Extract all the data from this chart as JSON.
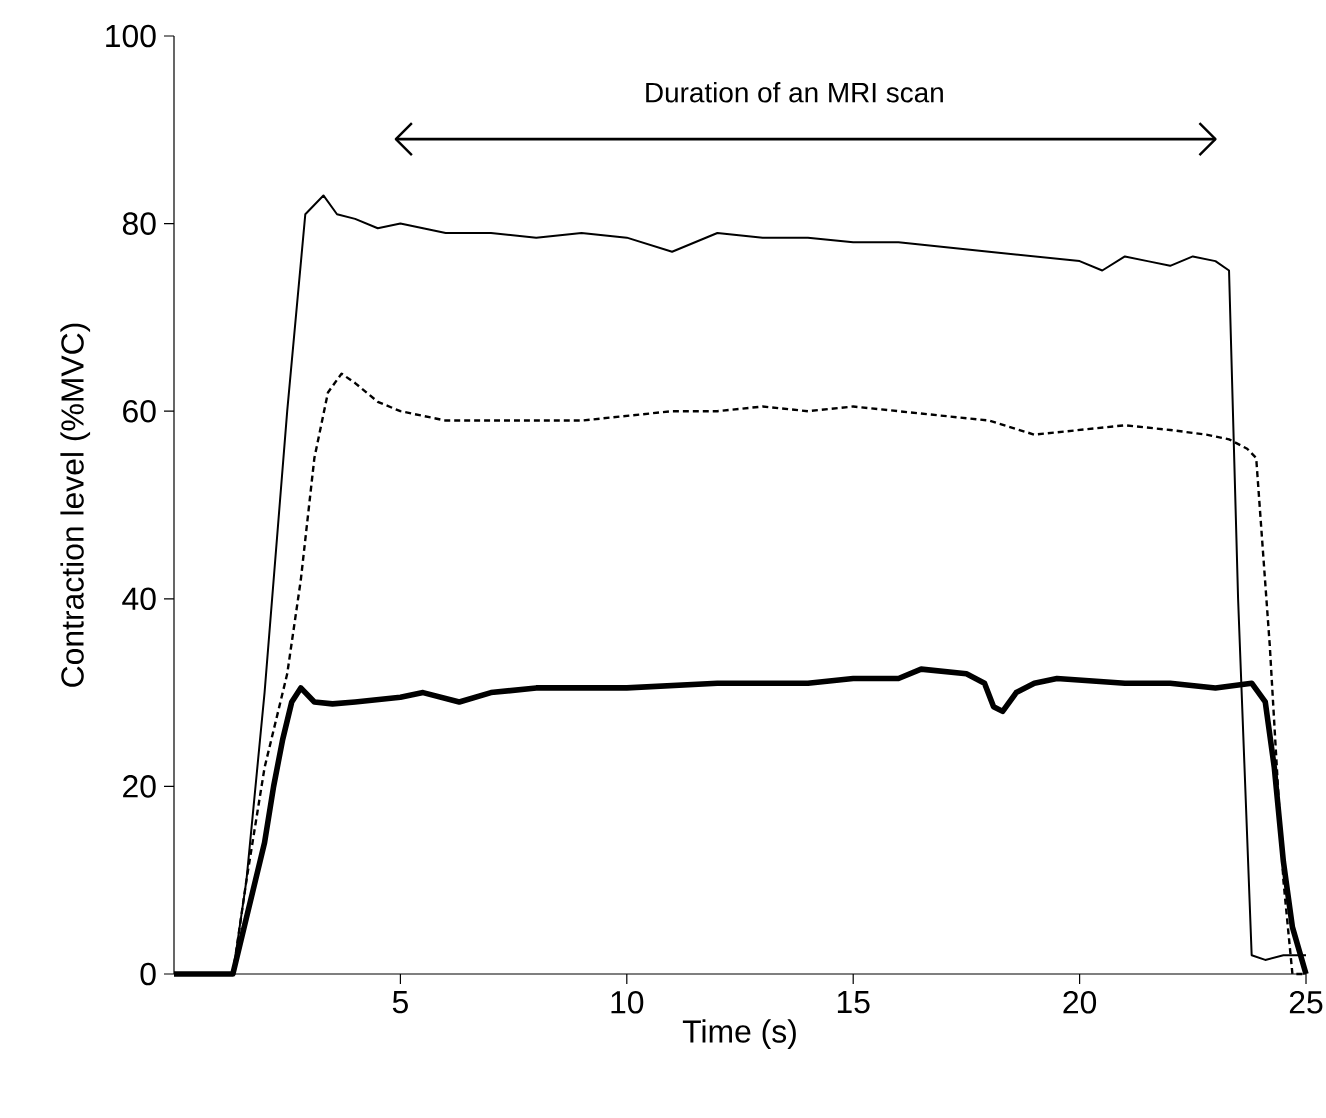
{
  "chart_data": {
    "type": "line",
    "xlabel": "Time (s)",
    "ylabel": "Contraction level (%MVC)",
    "xlim": [
      0,
      25
    ],
    "ylim": [
      0,
      100
    ],
    "xticks": [
      5,
      10,
      15,
      20,
      25
    ],
    "yticks": [
      0,
      20,
      40,
      60,
      80,
      100
    ],
    "grid": false,
    "marker": "none",
    "annotations": [
      "Duration of an MRI scan"
    ],
    "series": [
      {
        "color": "#000000",
        "line_style": "solid",
        "x": [
          0,
          1.3,
          1.6,
          2.0,
          2.5,
          2.9,
          3.3,
          3.6,
          4.0,
          4.5,
          5.0,
          6.0,
          7.0,
          8.0,
          9.0,
          10.0,
          11.0,
          11.5,
          12.0,
          13.0,
          14.0,
          15.0,
          16.0,
          17.0,
          18.0,
          19.0,
          20.0,
          20.5,
          21.0,
          21.5,
          22.0,
          22.5,
          23.0,
          23.3,
          23.5,
          23.8,
          24.1,
          24.5,
          25.0
        ],
        "values": [
          0,
          0,
          10,
          30,
          60,
          81,
          83,
          81,
          80.5,
          79.5,
          80,
          79,
          79,
          78.5,
          79,
          78.5,
          77,
          78,
          79,
          78.5,
          78.5,
          78,
          78,
          77.5,
          77,
          76.5,
          76,
          75,
          76.5,
          76,
          75.5,
          76.5,
          76,
          75,
          40,
          2,
          1.5,
          2,
          2
        ]
      },
      {
        "color": "#000000",
        "line_style": "dashed",
        "x": [
          0,
          1.3,
          1.6,
          2.0,
          2.5,
          2.8,
          3.1,
          3.4,
          3.7,
          4.0,
          4.5,
          5.0,
          5.5,
          6.0,
          7.0,
          8.0,
          9.0,
          10.0,
          11.0,
          12.0,
          13.0,
          14.0,
          15.0,
          16.0,
          17.0,
          18.0,
          19.0,
          20.0,
          21.0,
          22.0,
          22.8,
          23.3,
          23.7,
          23.9,
          24.2,
          24.5,
          24.7,
          25.0
        ],
        "values": [
          0,
          0,
          10,
          22,
          32,
          42,
          55,
          62,
          64,
          63,
          61,
          60,
          59.5,
          59,
          59,
          59,
          59,
          59.5,
          60,
          60,
          60.5,
          60,
          60.5,
          60,
          59.5,
          59,
          57.5,
          58,
          58.5,
          58,
          57.5,
          57,
          56,
          55,
          35,
          10,
          0,
          0
        ]
      },
      {
        "color": "#000000",
        "line_style": "solid",
        "x": [
          0,
          0.5,
          1.3,
          1.6,
          1.8,
          2.0,
          2.2,
          2.4,
          2.6,
          2.8,
          3.1,
          3.5,
          4.0,
          5.0,
          5.5,
          6.3,
          7.0,
          8.0,
          10.0,
          12.0,
          14.0,
          15.0,
          16.0,
          16.5,
          17.5,
          17.9,
          18.1,
          18.3,
          18.6,
          19.0,
          19.5,
          21.0,
          22.0,
          23.0,
          23.8,
          24.1,
          24.3,
          24.5,
          24.7,
          25.0
        ],
        "values": [
          0,
          0,
          0,
          6,
          10,
          14,
          20,
          25,
          29,
          30.5,
          29,
          28.8,
          29,
          29.5,
          30,
          29,
          30,
          30.5,
          30.5,
          31,
          31,
          31.5,
          31.5,
          32.5,
          32,
          31,
          28.5,
          28,
          30,
          31,
          31.5,
          31,
          31,
          30.5,
          31,
          29,
          22,
          12,
          5,
          0
        ]
      }
    ]
  }
}
